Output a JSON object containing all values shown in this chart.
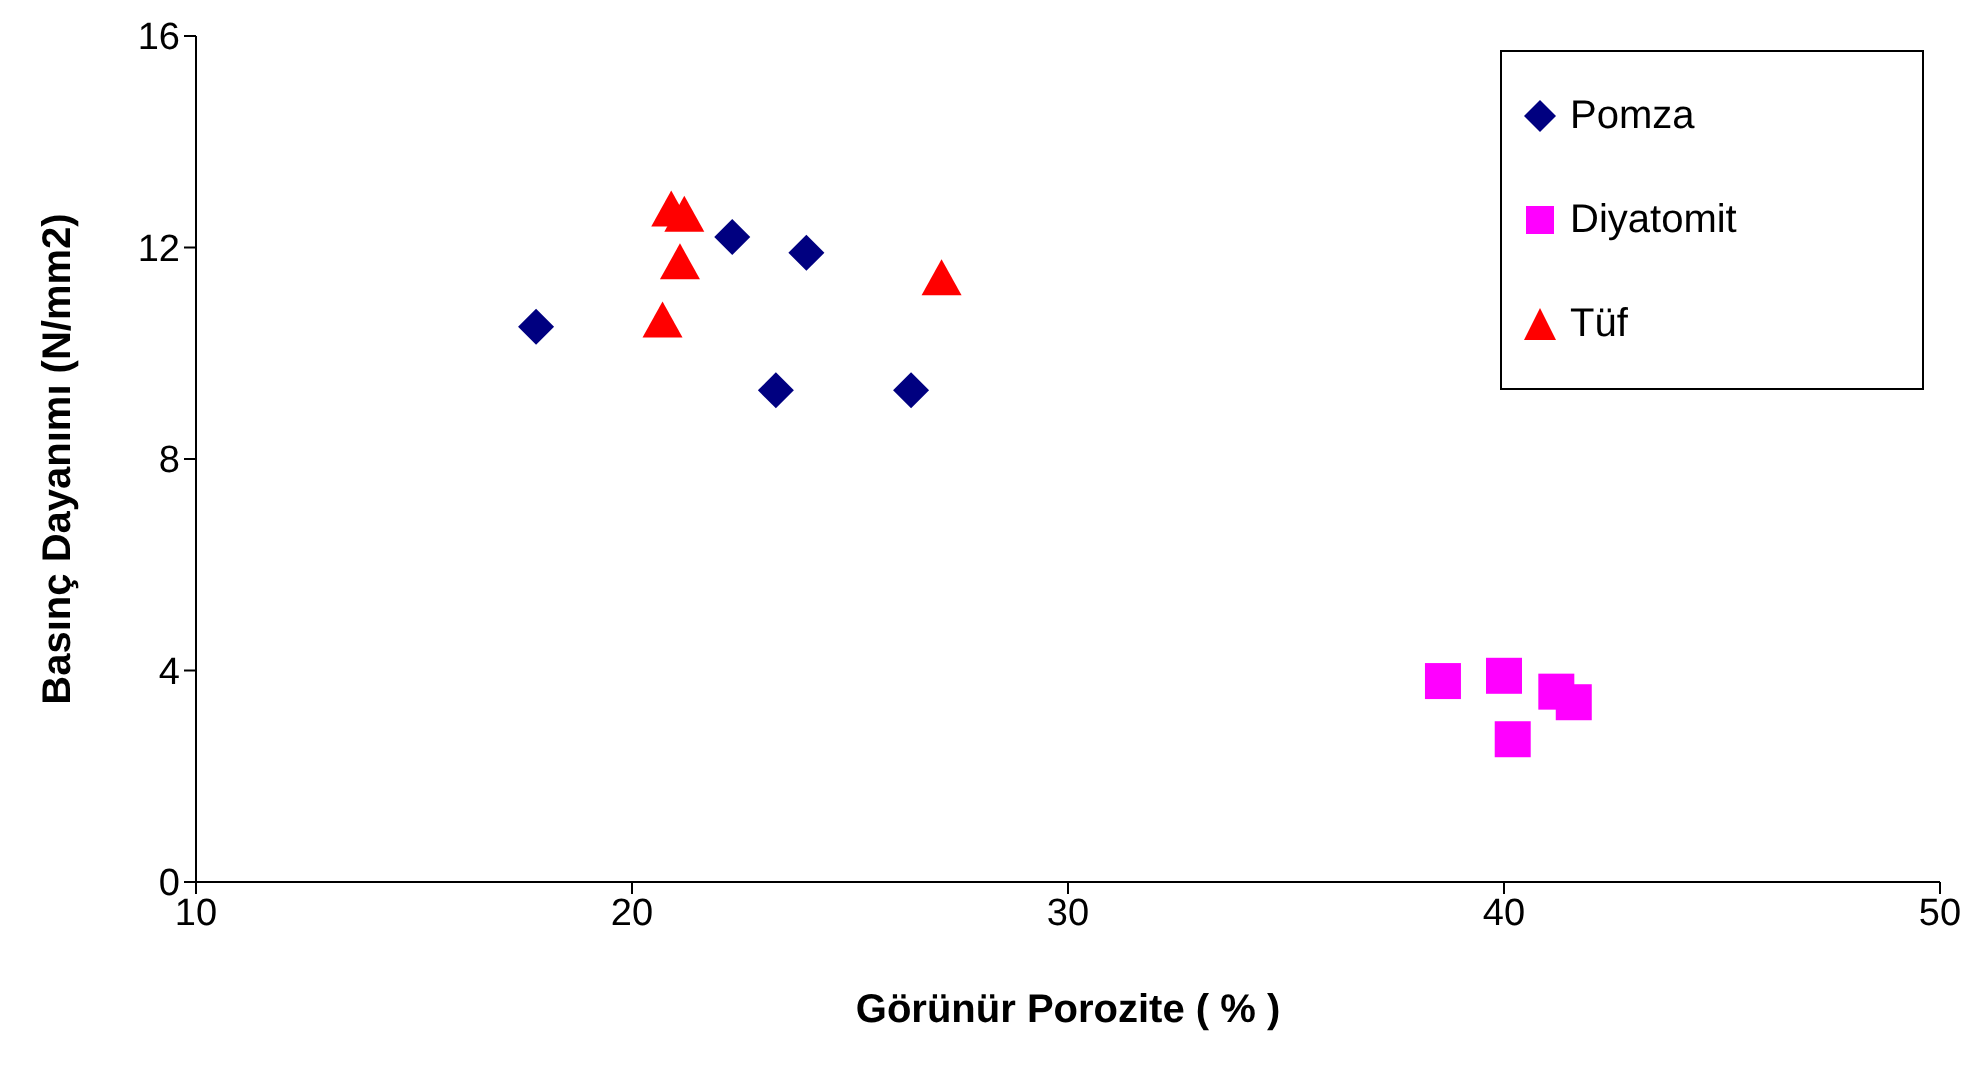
{
  "chart_data": {
    "type": "scatter",
    "xlabel": "Görünür Porozite ( % )",
    "ylabel": "Basınç Dayanımı (N/mm2)",
    "xlim": [
      10,
      50
    ],
    "xticks": [
      10,
      20,
      30,
      40,
      50
    ],
    "ylim": [
      0,
      16
    ],
    "yticks": [
      0,
      4,
      8,
      12,
      16
    ],
    "grid": false,
    "legend": "top right",
    "series": [
      {
        "name": "Pomza",
        "color": "#000080",
        "marker": "diamond",
        "x": [
          17.8,
          22.3,
          24.0,
          23.3,
          26.4
        ],
        "values": [
          10.5,
          12.2,
          11.9,
          9.3,
          9.3
        ]
      },
      {
        "name": "Diyatomit",
        "color": "#ff00ff",
        "marker": "square",
        "x": [
          38.6,
          40.0,
          41.2,
          41.6,
          40.2
        ],
        "values": [
          3.8,
          3.9,
          3.6,
          3.4,
          2.7
        ]
      },
      {
        "name": "Tüf",
        "color": "#ff0000",
        "marker": "triangle",
        "x": [
          20.9,
          21.2,
          21.1,
          20.7,
          27.1
        ],
        "values": [
          12.7,
          12.6,
          11.7,
          10.6,
          11.4
        ]
      }
    ]
  }
}
